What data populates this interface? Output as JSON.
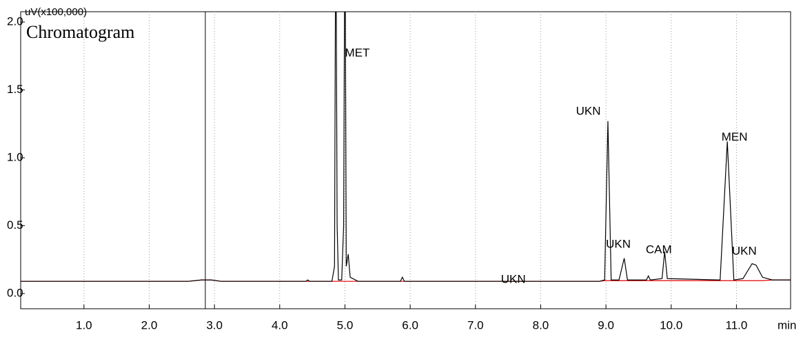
{
  "chart_data": {
    "type": "line",
    "title": "Chromatogram",
    "y_label": "uV(x100,000)",
    "x_label": "min",
    "x": [
      0.03,
      2.6,
      2.8,
      2.95,
      3.1,
      4.4,
      4.43,
      4.46,
      4.8,
      4.84,
      4.86,
      4.88,
      4.9,
      4.95,
      4.98,
      5.0,
      5.02,
      5.05,
      5.08,
      5.2,
      5.85,
      5.88,
      5.91,
      8.9,
      8.98,
      9.03,
      9.08,
      9.2,
      9.28,
      9.33,
      9.62,
      9.65,
      9.68,
      9.86,
      9.9,
      9.94,
      10.75,
      10.86,
      10.96,
      11.1,
      11.24,
      11.3,
      11.4,
      11.55,
      11.83
    ],
    "series": [
      {
        "color": "#000000",
        "values": [
          0.09,
          0.09,
          0.1,
          0.1,
          0.09,
          0.09,
          0.1,
          0.09,
          0.09,
          0.2,
          3,
          0.5,
          0.1,
          0.1,
          0.5,
          3,
          0.2,
          0.29,
          0.12,
          0.09,
          0.09,
          0.12,
          0.09,
          0.09,
          0.1,
          1.27,
          0.1,
          0.1,
          0.26,
          0.1,
          0.1,
          0.13,
          0.1,
          0.11,
          0.31,
          0.11,
          0.1,
          1.12,
          0.1,
          0.11,
          0.22,
          0.21,
          0.12,
          0.1,
          0.1
        ]
      },
      {
        "color": "#e00000",
        "values": [
          0.09,
          0.09,
          0.1,
          0.1,
          0.09,
          0.09,
          0.09,
          0.09,
          0.09,
          0.09,
          0.09,
          0.09,
          0.09,
          0.09,
          0.09,
          0.09,
          0.09,
          0.09,
          0.09,
          0.09,
          0.09,
          0.09,
          0.09,
          0.09,
          0.095,
          0.095,
          0.095,
          0.095,
          0.095,
          0.095,
          0.095,
          0.095,
          0.095,
          0.095,
          0.095,
          0.095,
          0.095,
          0.095,
          0.095,
          0.095,
          0.095,
          0.095,
          0.095,
          0.1,
          0.1
        ]
      }
    ],
    "annotations": [
      {
        "text": "MET",
        "x": 5.19,
        "y": 1.77
      },
      {
        "text": "UKN",
        "x": 8.73,
        "y": 1.34
      },
      {
        "text": "MEN",
        "x": 10.97,
        "y": 1.15
      },
      {
        "text": "UKN",
        "x": 9.19,
        "y": 0.36
      },
      {
        "text": "CAM",
        "x": 9.81,
        "y": 0.32
      },
      {
        "text": "UKN",
        "x": 11.12,
        "y": 0.31
      },
      {
        "text": "UKN",
        "x": 7.58,
        "y": 0.1
      }
    ],
    "vlines": [
      2.86
    ],
    "xlim": [
      0.03,
      11.83
    ],
    "ylim": [
      -0.112,
      2.076
    ],
    "xticks": [
      {
        "value": 1,
        "label": "1.0"
      },
      {
        "value": 2,
        "label": "2.0"
      },
      {
        "value": 3,
        "label": "3.0"
      },
      {
        "value": 4,
        "label": "4.0"
      },
      {
        "value": 5,
        "label": "5.0"
      },
      {
        "value": 6,
        "label": "6.0"
      },
      {
        "value": 7,
        "label": "7.0"
      },
      {
        "value": 8,
        "label": "8.0"
      },
      {
        "value": 9,
        "label": "9.0"
      },
      {
        "value": 10,
        "label": "10.0"
      },
      {
        "value": 11,
        "label": "11.0"
      }
    ],
    "yticks": [
      {
        "value": 0,
        "label": "0.0"
      },
      {
        "value": 0.5,
        "label": "0.5"
      },
      {
        "value": 1,
        "label": "1.0"
      },
      {
        "value": 1.5,
        "label": "1.5"
      },
      {
        "value": 2,
        "label": "2.0"
      }
    ],
    "grid": "x"
  }
}
